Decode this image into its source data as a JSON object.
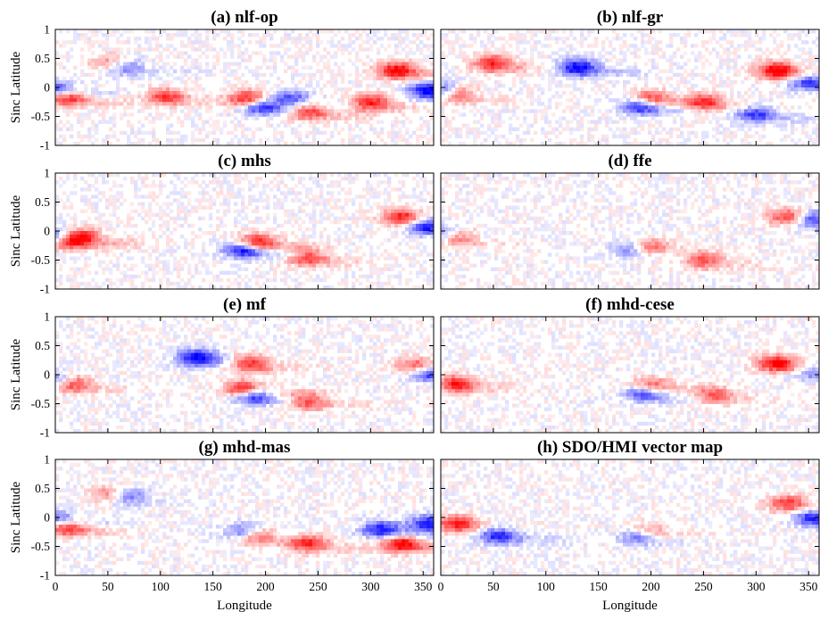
{
  "chart_data": [
    {
      "type": "heatmap",
      "title": "(a) nlf-op",
      "ylabel": "Sinc Latitude",
      "xlabel": "",
      "xlim": [
        0,
        360
      ],
      "ylim": [
        -1,
        1
      ],
      "colormap": [
        "#0000ff",
        "#ffffff",
        "#ff0000"
      ],
      "grid": false,
      "y_ticks": [
        "-1",
        "-0.5",
        "0",
        "0.5",
        "1"
      ],
      "features": [
        {
          "lon": 10,
          "lat": -0.15,
          "polarity": 1,
          "strength": 0.9
        },
        {
          "lon": 2,
          "lat": -0.05,
          "polarity": -1,
          "strength": 0.8
        },
        {
          "lon": 55,
          "lat": 0.42,
          "polarity": 1,
          "strength": 0.7
        },
        {
          "lon": 63,
          "lat": 0.38,
          "polarity": -1,
          "strength": 0.8
        },
        {
          "lon": 105,
          "lat": -0.15,
          "polarity": 1,
          "strength": 0.6
        },
        {
          "lon": 185,
          "lat": -0.2,
          "polarity": 1,
          "strength": 0.9
        },
        {
          "lon": 195,
          "lat": -0.3,
          "polarity": -1,
          "strength": 0.9
        },
        {
          "lon": 240,
          "lat": -0.4,
          "polarity": 1,
          "strength": 0.7
        },
        {
          "lon": 225,
          "lat": -0.2,
          "polarity": -1,
          "strength": 0.6
        },
        {
          "lon": 300,
          "lat": -0.25,
          "polarity": 1,
          "strength": 0.7
        },
        {
          "lon": 325,
          "lat": 0.3,
          "polarity": 1,
          "strength": 0.8
        },
        {
          "lon": 355,
          "lat": -0.05,
          "polarity": -1,
          "strength": 0.8
        }
      ]
    },
    {
      "type": "heatmap",
      "title": "(b) nlf-gr",
      "ylabel": "",
      "xlabel": "",
      "xlim": [
        0,
        360
      ],
      "ylim": [
        -1,
        1
      ],
      "colormap": [
        "#0000ff",
        "#ffffff",
        "#ff0000"
      ],
      "grid": false,
      "y_ticks": [],
      "features": [
        {
          "lon": 15,
          "lat": -0.1,
          "polarity": 1,
          "strength": 0.8
        },
        {
          "lon": 5,
          "lat": -0.05,
          "polarity": -1,
          "strength": 0.7
        },
        {
          "lon": 50,
          "lat": 0.42,
          "polarity": 1,
          "strength": 0.7
        },
        {
          "lon": 130,
          "lat": 0.35,
          "polarity": -1,
          "strength": 0.8
        },
        {
          "lon": 190,
          "lat": -0.3,
          "polarity": -1,
          "strength": 0.9
        },
        {
          "lon": 198,
          "lat": -0.2,
          "polarity": 1,
          "strength": 0.8
        },
        {
          "lon": 250,
          "lat": -0.25,
          "polarity": 1,
          "strength": 0.6
        },
        {
          "lon": 320,
          "lat": 0.3,
          "polarity": 1,
          "strength": 0.9
        },
        {
          "lon": 300,
          "lat": -0.45,
          "polarity": -1,
          "strength": 0.6
        },
        {
          "lon": 350,
          "lat": 0.1,
          "polarity": -1,
          "strength": 0.6
        }
      ]
    },
    {
      "type": "heatmap",
      "title": "(c) mhs",
      "ylabel": "Sinc Latitude",
      "xlabel": "",
      "xlim": [
        0,
        360
      ],
      "ylim": [
        -1,
        1
      ],
      "colormap": [
        "#0000ff",
        "#ffffff",
        "#ff0000"
      ],
      "grid": false,
      "y_ticks": [
        "-1",
        "-0.5",
        "0",
        "0.5",
        "1"
      ],
      "features": [
        {
          "lon": 10,
          "lat": -0.15,
          "polarity": 1,
          "strength": 0.95
        },
        {
          "lon": 3,
          "lat": -0.1,
          "polarity": -1,
          "strength": 0.9
        },
        {
          "lon": 25,
          "lat": -0.1,
          "polarity": 1,
          "strength": 0.7
        },
        {
          "lon": 190,
          "lat": -0.2,
          "polarity": 1,
          "strength": 0.95
        },
        {
          "lon": 180,
          "lat": -0.3,
          "polarity": -1,
          "strength": 0.95
        },
        {
          "lon": 240,
          "lat": -0.45,
          "polarity": 1,
          "strength": 0.6
        },
        {
          "lon": 330,
          "lat": 0.25,
          "polarity": 1,
          "strength": 0.7
        },
        {
          "lon": 355,
          "lat": 0.1,
          "polarity": -1,
          "strength": 0.8
        }
      ]
    },
    {
      "type": "heatmap",
      "title": "(d) ffe",
      "ylabel": "",
      "xlabel": "",
      "xlim": [
        0,
        360
      ],
      "ylim": [
        -1,
        1
      ],
      "colormap": [
        "#0000ff",
        "#ffffff",
        "#ff0000"
      ],
      "grid": false,
      "y_ticks": [],
      "features": [
        {
          "lon": 15,
          "lat": -0.1,
          "polarity": 1,
          "strength": 0.7
        },
        {
          "lon": 5,
          "lat": -0.05,
          "polarity": -1,
          "strength": 0.6
        },
        {
          "lon": 195,
          "lat": -0.28,
          "polarity": 1,
          "strength": 0.8
        },
        {
          "lon": 185,
          "lat": -0.3,
          "polarity": -1,
          "strength": 0.7
        },
        {
          "lon": 250,
          "lat": -0.5,
          "polarity": 1,
          "strength": 0.5
        },
        {
          "lon": 330,
          "lat": 0.25,
          "polarity": 1,
          "strength": 0.6
        },
        {
          "lon": 355,
          "lat": 0.2,
          "polarity": -1,
          "strength": 0.7
        }
      ]
    },
    {
      "type": "heatmap",
      "title": "(e) mf",
      "ylabel": "Sinc Latitude",
      "xlabel": "",
      "xlim": [
        0,
        360
      ],
      "ylim": [
        -1,
        1
      ],
      "colormap": [
        "#0000ff",
        "#ffffff",
        "#ff0000"
      ],
      "grid": false,
      "y_ticks": [
        "-1",
        "-0.5",
        "0",
        "0.5",
        "1"
      ],
      "features": [
        {
          "lon": 15,
          "lat": -0.15,
          "polarity": 1,
          "strength": 0.8
        },
        {
          "lon": 2,
          "lat": -0.1,
          "polarity": -1,
          "strength": 0.6
        },
        {
          "lon": 135,
          "lat": 0.3,
          "polarity": -1,
          "strength": 0.8
        },
        {
          "lon": 180,
          "lat": -0.25,
          "polarity": 1,
          "strength": 0.9
        },
        {
          "lon": 188,
          "lat": -0.35,
          "polarity": -1,
          "strength": 0.9
        },
        {
          "lon": 185,
          "lat": 0.2,
          "polarity": 1,
          "strength": 0.7
        },
        {
          "lon": 240,
          "lat": -0.45,
          "polarity": 1,
          "strength": 0.6
        },
        {
          "lon": 345,
          "lat": 0.15,
          "polarity": 1,
          "strength": 0.7
        },
        {
          "lon": 355,
          "lat": 0.05,
          "polarity": -1,
          "strength": 0.8
        }
      ]
    },
    {
      "type": "heatmap",
      "title": "(f) mhd-cese",
      "ylabel": "",
      "xlabel": "",
      "xlim": [
        0,
        360
      ],
      "ylim": [
        -1,
        1
      ],
      "colormap": [
        "#0000ff",
        "#ffffff",
        "#ff0000"
      ],
      "grid": false,
      "y_ticks": [],
      "features": [
        {
          "lon": 15,
          "lat": -0.15,
          "polarity": 1,
          "strength": 0.7
        },
        {
          "lon": 195,
          "lat": -0.3,
          "polarity": -1,
          "strength": 0.8
        },
        {
          "lon": 200,
          "lat": -0.2,
          "polarity": 1,
          "strength": 0.7
        },
        {
          "lon": 320,
          "lat": 0.2,
          "polarity": 1,
          "strength": 0.8
        },
        {
          "lon": 260,
          "lat": -0.35,
          "polarity": 1,
          "strength": 0.5
        },
        {
          "lon": 355,
          "lat": 0.05,
          "polarity": -1,
          "strength": 0.4
        }
      ]
    },
    {
      "type": "heatmap",
      "title": "(g) mhd-mas",
      "ylabel": "Sinc Latitude",
      "xlabel": "Longitude",
      "xlim": [
        0,
        360
      ],
      "ylim": [
        -1,
        1
      ],
      "colormap": [
        "#0000ff",
        "#ffffff",
        "#ff0000"
      ],
      "grid": false,
      "y_ticks": [
        "-1",
        "-0.5",
        "0",
        "0.5",
        "1"
      ],
      "x_ticks": [
        "0",
        "50",
        "100",
        "150",
        "200",
        "250",
        "300",
        "350"
      ],
      "features": [
        {
          "lon": 10,
          "lat": -0.15,
          "polarity": 1,
          "strength": 0.9
        },
        {
          "lon": 3,
          "lat": -0.05,
          "polarity": -1,
          "strength": 0.7
        },
        {
          "lon": 55,
          "lat": 0.4,
          "polarity": 1,
          "strength": 0.7
        },
        {
          "lon": 65,
          "lat": 0.38,
          "polarity": -1,
          "strength": 0.8
        },
        {
          "lon": 190,
          "lat": -0.3,
          "polarity": 1,
          "strength": 0.9
        },
        {
          "lon": 182,
          "lat": -0.25,
          "polarity": -1,
          "strength": 0.8
        },
        {
          "lon": 240,
          "lat": -0.45,
          "polarity": 1,
          "strength": 0.6
        },
        {
          "lon": 330,
          "lat": -0.45,
          "polarity": 1,
          "strength": 0.8
        },
        {
          "lon": 310,
          "lat": -0.2,
          "polarity": -1,
          "strength": 0.7
        },
        {
          "lon": 355,
          "lat": -0.1,
          "polarity": -1,
          "strength": 0.7
        }
      ]
    },
    {
      "type": "heatmap",
      "title": "(h) SDO/HMI vector map",
      "ylabel": "",
      "xlabel": "Longitude",
      "xlim": [
        0,
        360
      ],
      "ylim": [
        -1,
        1
      ],
      "colormap": [
        "#0000ff",
        "#ffffff",
        "#ff0000"
      ],
      "grid": false,
      "y_ticks": [],
      "x_ticks": [
        "0",
        "50",
        "100",
        "150",
        "200",
        "250",
        "300",
        "350"
      ],
      "features": [
        {
          "lon": 15,
          "lat": -0.1,
          "polarity": 1,
          "strength": 0.7
        },
        {
          "lon": 55,
          "lat": -0.3,
          "polarity": -1,
          "strength": 0.7
        },
        {
          "lon": 190,
          "lat": -0.3,
          "polarity": -1,
          "strength": 0.8
        },
        {
          "lon": 195,
          "lat": -0.25,
          "polarity": 1,
          "strength": 0.7
        },
        {
          "lon": 330,
          "lat": 0.25,
          "polarity": 1,
          "strength": 0.6
        },
        {
          "lon": 355,
          "lat": 0.0,
          "polarity": -1,
          "strength": 0.7
        }
      ]
    }
  ]
}
